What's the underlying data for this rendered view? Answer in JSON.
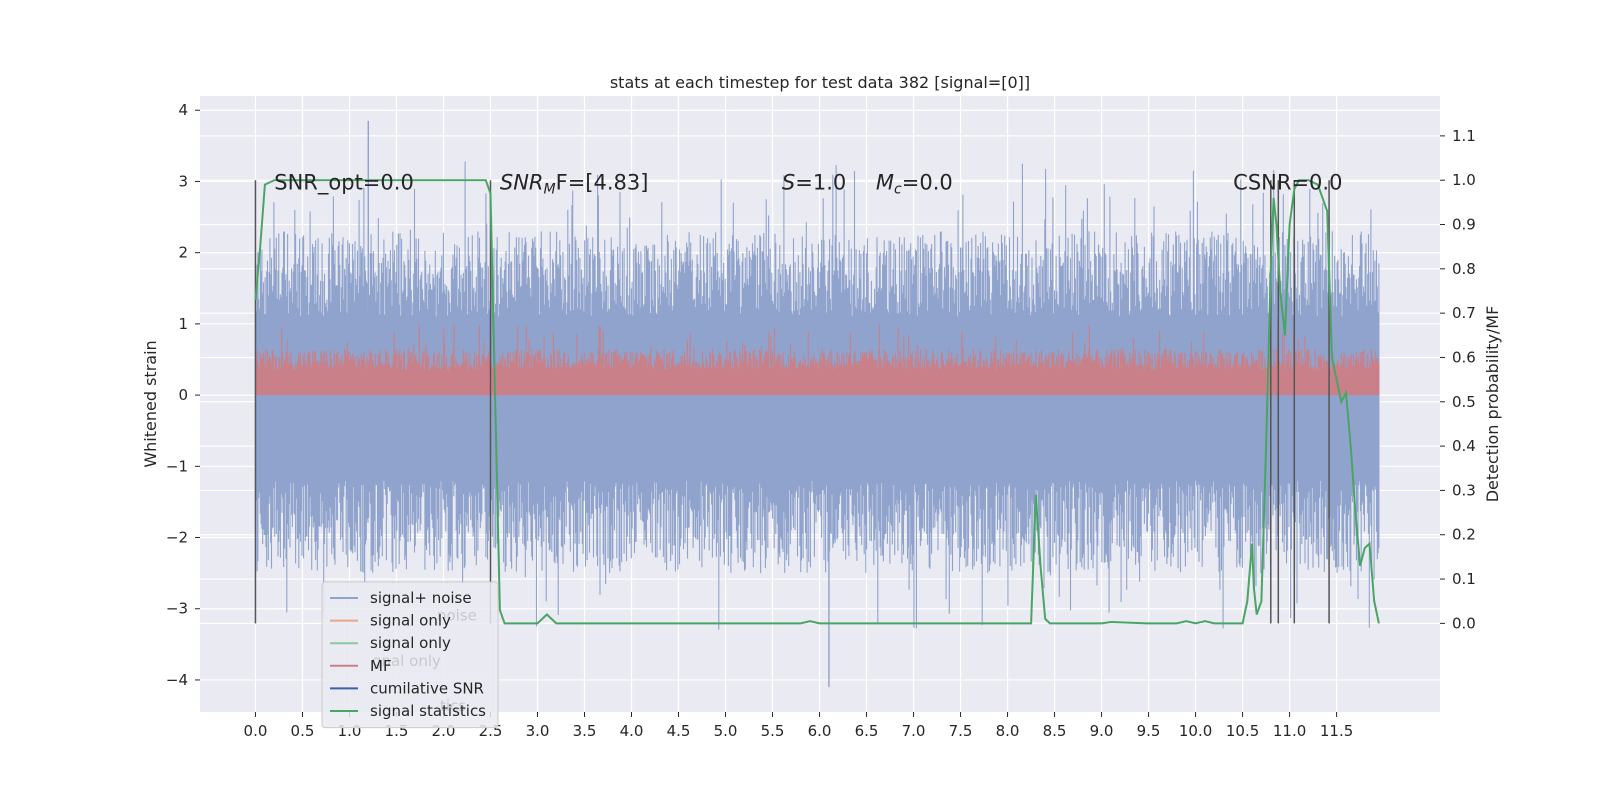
{
  "chart_data": {
    "type": "line",
    "title": "stats at each timestep for test data 382 [signal=[0]]",
    "xlabel": "",
    "ylabel_left": "Whitened strain",
    "ylabel_right": "Detection probability/MF",
    "xlim": [
      -0.59,
      12.6
    ],
    "ylim_left": [
      -4.45,
      4.2
    ],
    "ylim_right": [
      -0.2,
      1.19
    ],
    "grid": true,
    "legend_position": "lower left",
    "x_ticks": [
      "0.0",
      "0.5",
      "1.0",
      "1.5",
      "2.0",
      "2.5",
      "3.0",
      "3.5",
      "4.0",
      "4.5",
      "5.0",
      "5.5",
      "6.0",
      "6.5",
      "7.0",
      "7.5",
      "8.0",
      "8.5",
      "9.0",
      "9.5",
      "10.0",
      "10.5",
      "11.0",
      "11.5"
    ],
    "y_ticks_left": [
      "−4",
      "−3",
      "−2",
      "−1",
      "0",
      "1",
      "2",
      "3",
      "4"
    ],
    "y_ticks_right": [
      "0.0",
      "0.1",
      "0.2",
      "0.3",
      "0.4",
      "0.5",
      "0.6",
      "0.7",
      "0.8",
      "0.9",
      "1.0",
      "1.1"
    ],
    "annotations": [
      {
        "x": 0.2,
        "y": 3.0,
        "text": "SNR_opt=0.0"
      },
      {
        "x": 2.6,
        "y": 3.0,
        "main": "SNR",
        "sub": "M",
        "rest": "F=[4.83]"
      },
      {
        "x": 5.6,
        "y": 3.0,
        "main": "S",
        "sub": "",
        "rest": "=1.0"
      },
      {
        "x": 6.6,
        "y": 3.0,
        "main": "M",
        "sub": "c",
        "rest": "=0.0"
      },
      {
        "x": 10.4,
        "y": 3.0,
        "text": "CSNR=0.0"
      }
    ],
    "legend": [
      {
        "label": "signal+ noise",
        "color": "#8fa3cc"
      },
      {
        "label": "signal only",
        "color": "#e3a88a"
      },
      {
        "label": "signal only",
        "color": "#8bc79c"
      },
      {
        "label": "MF",
        "color": "#c98088"
      },
      {
        "label": "cumilative SNR",
        "color": "#3c5fa8"
      },
      {
        "label": "signal statistics",
        "color": "#4aa564"
      }
    ],
    "legend_ghost": [
      "noise",
      "gnal only",
      "tics"
    ],
    "series": [
      {
        "name": "signal+ noise",
        "color": "#8fa3cc",
        "x_range": [
          0.0,
          11.95
        ],
        "envelope_low": -2.5,
        "envelope_high": 2.3,
        "peak_high": 3.85,
        "peak_low": -4.1
      },
      {
        "name": "MF",
        "color": "#c98088",
        "x_range": [
          0.0,
          11.95
        ],
        "band": [
          0.0,
          1.0
        ],
        "axis": "left"
      },
      {
        "name": "signal statistics",
        "color": "#4aa564",
        "axis": "right",
        "x": [
          0.0,
          0.05,
          0.1,
          0.2,
          0.5,
          1.0,
          1.5,
          2.0,
          2.3,
          2.4,
          2.45,
          2.5,
          2.55,
          2.6,
          2.65,
          2.7,
          2.8,
          2.9,
          3.0,
          3.05,
          3.1,
          3.2,
          3.5,
          4.0,
          5.0,
          5.5,
          5.8,
          5.9,
          6.0,
          6.5,
          7.0,
          7.5,
          8.0,
          8.2,
          8.25,
          8.3,
          8.35,
          8.4,
          8.45,
          8.5,
          9.0,
          9.1,
          9.5,
          9.8,
          9.9,
          10.0,
          10.1,
          10.2,
          10.3,
          10.5,
          10.55,
          10.6,
          10.62,
          10.65,
          10.7,
          10.75,
          10.8,
          10.83,
          10.86,
          10.9,
          10.95,
          11.0,
          11.05,
          11.1,
          11.15,
          11.2,
          11.3,
          11.4,
          11.45,
          11.5,
          11.55,
          11.6,
          11.65,
          11.7,
          11.75,
          11.8,
          11.85,
          11.9,
          11.95
        ],
        "y": [
          0.73,
          0.85,
          0.99,
          1.0,
          1.0,
          1.0,
          1.0,
          1.0,
          1.0,
          1.0,
          1.0,
          0.97,
          0.5,
          0.03,
          0.0,
          0.0,
          0.0,
          0.0,
          0.0,
          0.01,
          0.02,
          0.0,
          0.0,
          0.0,
          0.0,
          0.0,
          0.0,
          0.005,
          0.0,
          0.0,
          0.0,
          0.0,
          0.0,
          0.0,
          0.0,
          0.29,
          0.13,
          0.01,
          0.0,
          0.0,
          0.0,
          0.003,
          0.0,
          0.0,
          0.005,
          0.0,
          0.005,
          0.0,
          0.0,
          0.0,
          0.05,
          0.18,
          0.08,
          0.02,
          0.05,
          0.4,
          0.8,
          0.96,
          0.9,
          0.75,
          0.65,
          0.9,
          0.98,
          1.0,
          1.0,
          1.0,
          0.99,
          0.93,
          0.6,
          0.55,
          0.5,
          0.52,
          0.4,
          0.25,
          0.13,
          0.17,
          0.18,
          0.05,
          0.0
        ]
      }
    ],
    "vertical_markers": [
      0.0,
      2.5,
      10.8,
      10.88,
      11.05,
      11.42
    ]
  }
}
